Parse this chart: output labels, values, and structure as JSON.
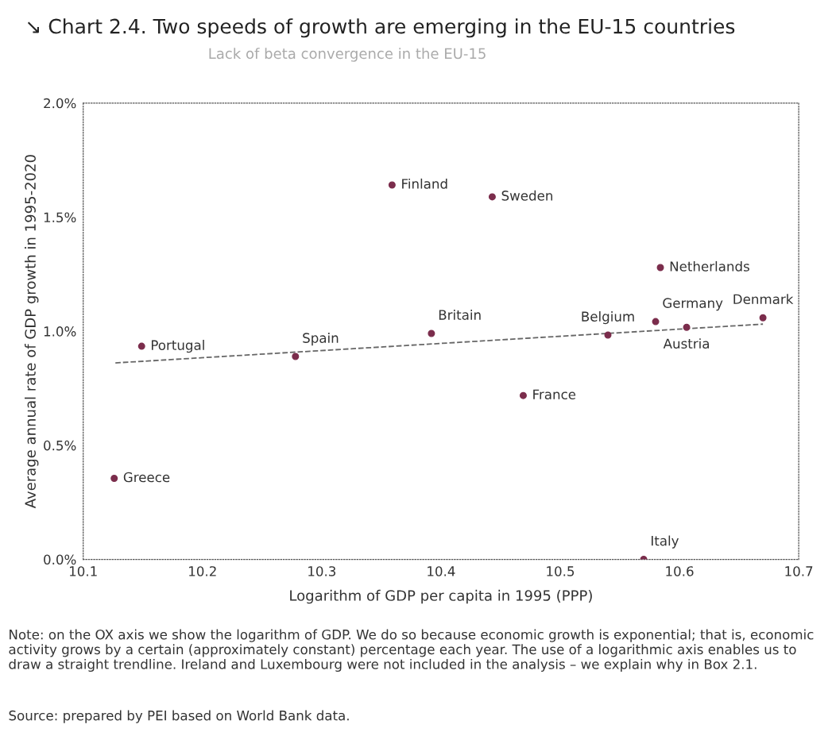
{
  "chart_data": {
    "type": "scatter",
    "title": "↘ Chart 2.4. Two speeds of growth are emerging in the EU-15 countries",
    "subtitle": "Lack of beta convergence in the EU-15",
    "xlabel": "Logarithm of GDP per capita in 1995 (PPP)",
    "ylabel": "Average annual rate of GDP growth in 1995-2020",
    "series": [
      {
        "color": "#7b2d4c",
        "marker": "circle",
        "x": [
          10.126,
          10.149,
          10.278,
          10.359,
          10.392,
          10.443,
          10.469,
          10.54,
          10.57,
          10.58,
          10.584,
          10.606,
          10.67
        ],
        "values": [
          0.355,
          0.934,
          0.889,
          1.641,
          0.99,
          1.589,
          0.718,
          0.983,
          0.0,
          1.042,
          1.279,
          1.017,
          1.059
        ]
      },
      {
        "type": "line",
        "color": "#666666",
        "line_style": "dashed",
        "marker": "none",
        "x": [
          10.127,
          10.67
        ],
        "values": [
          0.861,
          1.031
        ]
      }
    ],
    "annotations": [
      {
        "text": "Greece",
        "x": 10.126,
        "y": 0.355
      },
      {
        "text": "Portugal",
        "x": 10.149,
        "y": 0.934
      },
      {
        "text": "Spain",
        "x": 10.278,
        "y": 0.889
      },
      {
        "text": "Finland",
        "x": 10.359,
        "y": 1.641
      },
      {
        "text": "Britain",
        "x": 10.392,
        "y": 0.99
      },
      {
        "text": "Sweden",
        "x": 10.443,
        "y": 1.589
      },
      {
        "text": "France",
        "x": 10.469,
        "y": 0.718
      },
      {
        "text": "Belgium",
        "x": 10.54,
        "y": 0.983
      },
      {
        "text": "Italy",
        "x": 10.57,
        "y": 0.0
      },
      {
        "text": "Germany",
        "x": 10.58,
        "y": 1.042
      },
      {
        "text": "Netherlands",
        "x": 10.584,
        "y": 1.279
      },
      {
        "text": "Austria",
        "x": 10.606,
        "y": 1.017
      },
      {
        "text": "Denmark",
        "x": 10.67,
        "y": 1.059
      },
      "Note: on the OX axis we show the logarithm of GDP. We do so because economic growth is exponential; that is, economic activity grows by a certain (approximately constant) percentage each year. The use of a logarithmic axis enables us to draw a straight trendline. Ireland and Luxembourg were not included in the analysis – we explain why in Box 2.1.",
      "Source: prepared by PEI based on World Bank data."
    ],
    "xlim": [
      10.1,
      10.7
    ],
    "xticks": [
      10.1,
      10.2,
      10.3,
      10.4,
      10.5,
      10.6,
      10.7
    ],
    "ylim": [
      0,
      2.0
    ],
    "yticks": [
      {
        "value": 0,
        "label": "0.0%"
      },
      {
        "value": 0.5,
        "label": "0.5%"
      },
      {
        "value": 1.0,
        "label": "1.0%"
      },
      {
        "value": 1.5,
        "label": "1.5%"
      },
      {
        "value": 2.0,
        "label": "2.0%"
      }
    ],
    "grid": false,
    "legend": false
  }
}
